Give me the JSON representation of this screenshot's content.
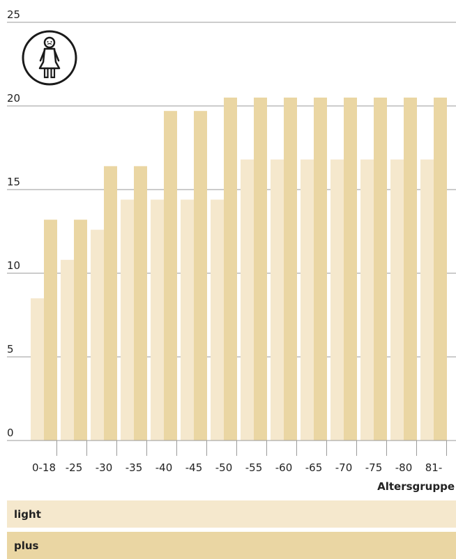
{
  "colors": {
    "light": "#f5e8cd",
    "plus": "#ead6a3",
    "gridline": "#9a9a9a"
  },
  "icon": "woman-figure-icon",
  "chart_data": {
    "type": "bar",
    "xlabel": "Altersgruppe",
    "ylabel": "",
    "ylim": [
      0,
      25
    ],
    "yticks": [
      0,
      5,
      10,
      15,
      20,
      25
    ],
    "grid": true,
    "legend_position": "bottom",
    "categories": [
      "0-18",
      "-25",
      "-30",
      "-35",
      "-40",
      "-45",
      "-50",
      "-55",
      "-60",
      "-65",
      "-70",
      "-75",
      "-80",
      "81-"
    ],
    "series": [
      {
        "name": "light",
        "values": [
          8.5,
          10.8,
          12.6,
          14.4,
          14.4,
          14.4,
          14.4,
          16.8,
          16.8,
          16.8,
          16.8,
          16.8,
          16.8,
          16.8
        ]
      },
      {
        "name": "plus",
        "values": [
          13.2,
          13.2,
          16.4,
          16.4,
          19.7,
          19.7,
          20.5,
          20.5,
          20.5,
          20.5,
          20.5,
          20.5,
          20.5,
          20.5
        ]
      }
    ]
  }
}
